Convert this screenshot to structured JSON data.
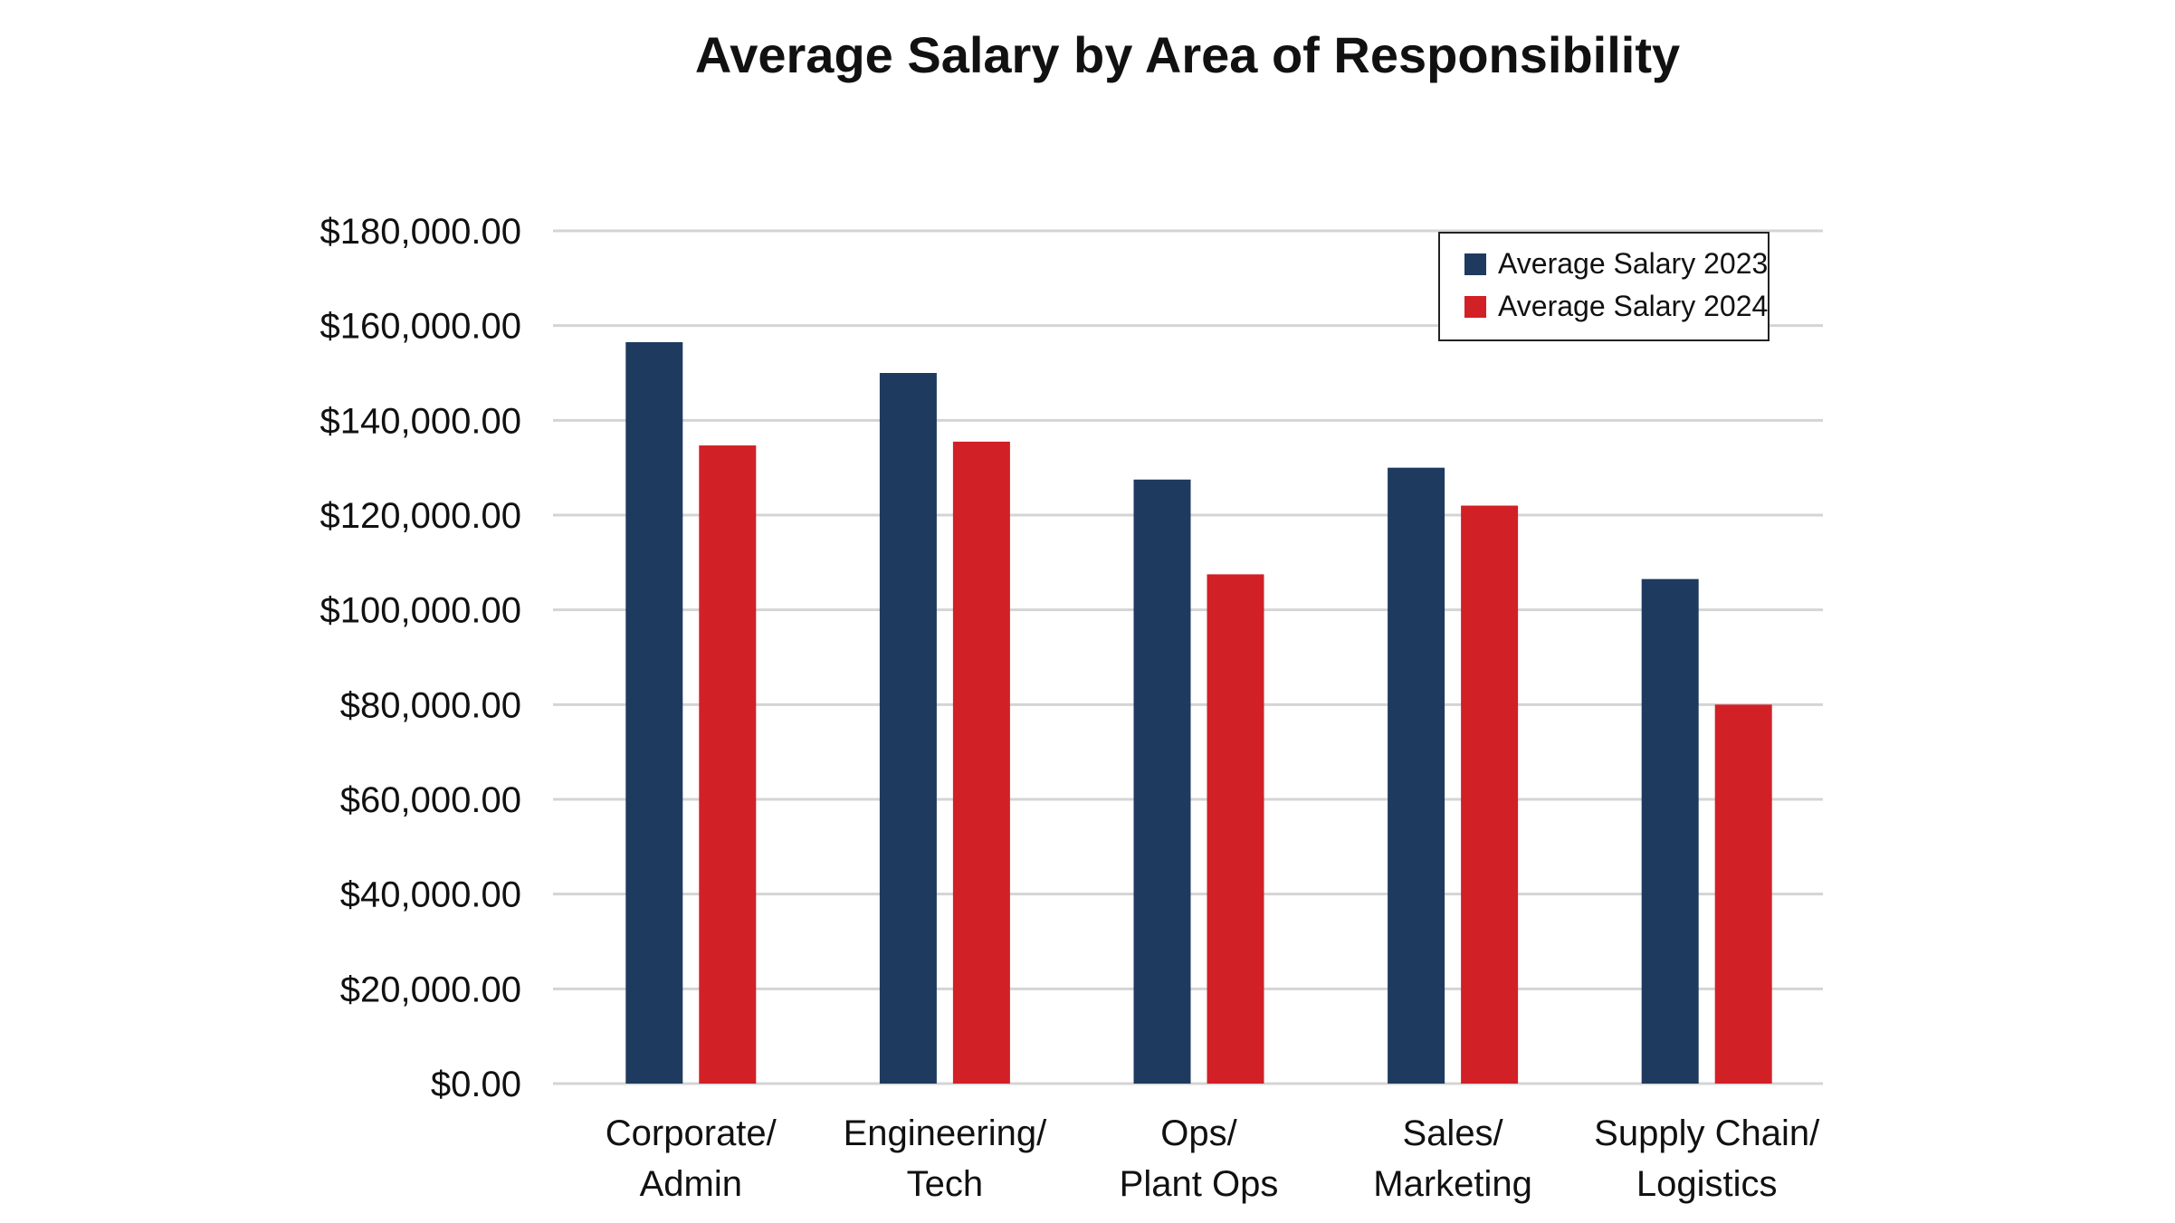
{
  "chart_data": {
    "type": "bar",
    "title": "Average Salary by Area of Responsibility",
    "categories": [
      [
        "Corporate/",
        "Admin"
      ],
      [
        "Engineering/",
        "Tech"
      ],
      [
        "Ops/",
        "Plant Ops"
      ],
      [
        "Sales/",
        "Marketing"
      ],
      [
        "Supply Chain/",
        "Logistics"
      ]
    ],
    "series": [
      {
        "name": "Average Salary 2023",
        "color": "#1e3a5f",
        "values": [
          156500,
          150000,
          127500,
          130000,
          106500
        ]
      },
      {
        "name": "Average Salary 2024",
        "color": "#d12026",
        "values": [
          134700,
          135500,
          107500,
          122000,
          80000
        ]
      }
    ],
    "ylim": [
      0,
      180000
    ],
    "yticks": [
      "$0.00",
      "$20,000.00",
      "$40,000.00",
      "$60,000.00",
      "$80,000.00",
      "$100,000.00",
      "$120,000.00",
      "$140,000.00",
      "$160,000.00",
      "$180,000.00"
    ],
    "ytick_values": [
      0,
      20000,
      40000,
      60000,
      80000,
      100000,
      120000,
      140000,
      160000,
      180000
    ],
    "grid": true,
    "legend_position": "top-right",
    "xlabel": "",
    "ylabel": ""
  }
}
